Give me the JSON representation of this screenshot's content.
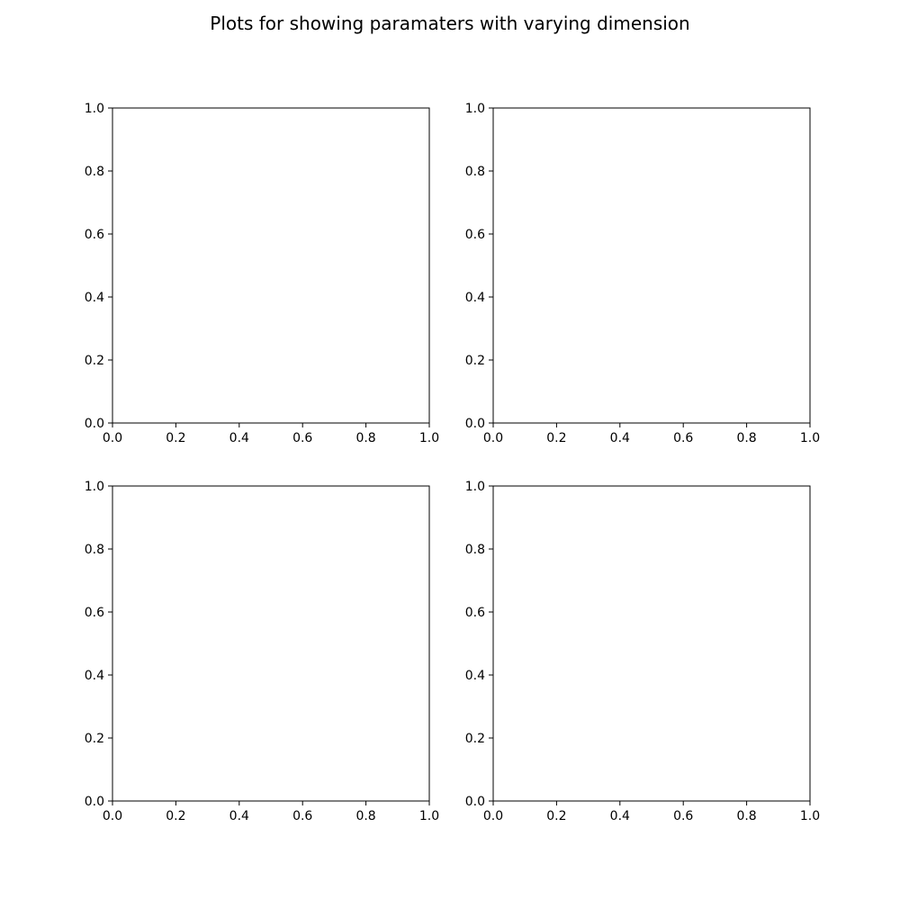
{
  "figure": {
    "title": "Plots for showing paramaters with varying dimension"
  },
  "chart_data": [
    {
      "type": "line",
      "panel": "top-left",
      "title": "",
      "xlabel": "",
      "ylabel": "",
      "xlim": [
        0.0,
        1.0
      ],
      "ylim": [
        0.0,
        1.0
      ],
      "xticks": [
        "0.0",
        "0.2",
        "0.4",
        "0.6",
        "0.8",
        "1.0"
      ],
      "yticks": [
        "0.0",
        "0.2",
        "0.4",
        "0.6",
        "0.8",
        "1.0"
      ],
      "grid": false,
      "series": []
    },
    {
      "type": "line",
      "panel": "top-right",
      "title": "",
      "xlabel": "",
      "ylabel": "",
      "xlim": [
        0.0,
        1.0
      ],
      "ylim": [
        0.0,
        1.0
      ],
      "xticks": [
        "0.0",
        "0.2",
        "0.4",
        "0.6",
        "0.8",
        "1.0"
      ],
      "yticks": [
        "0.0",
        "0.2",
        "0.4",
        "0.6",
        "0.8",
        "1.0"
      ],
      "grid": false,
      "series": []
    },
    {
      "type": "line",
      "panel": "bottom-left",
      "title": "",
      "xlabel": "",
      "ylabel": "",
      "xlim": [
        0.0,
        1.0
      ],
      "ylim": [
        0.0,
        1.0
      ],
      "xticks": [
        "0.0",
        "0.2",
        "0.4",
        "0.6",
        "0.8",
        "1.0"
      ],
      "yticks": [
        "0.0",
        "0.2",
        "0.4",
        "0.6",
        "0.8",
        "1.0"
      ],
      "grid": false,
      "series": []
    },
    {
      "type": "line",
      "panel": "bottom-right",
      "title": "",
      "xlabel": "",
      "ylabel": "",
      "xlim": [
        0.0,
        1.0
      ],
      "ylim": [
        0.0,
        1.0
      ],
      "xticks": [
        "0.0",
        "0.2",
        "0.4",
        "0.6",
        "0.8",
        "1.0"
      ],
      "yticks": [
        "0.0",
        "0.2",
        "0.4",
        "0.6",
        "0.8",
        "1.0"
      ],
      "grid": false,
      "series": []
    }
  ]
}
